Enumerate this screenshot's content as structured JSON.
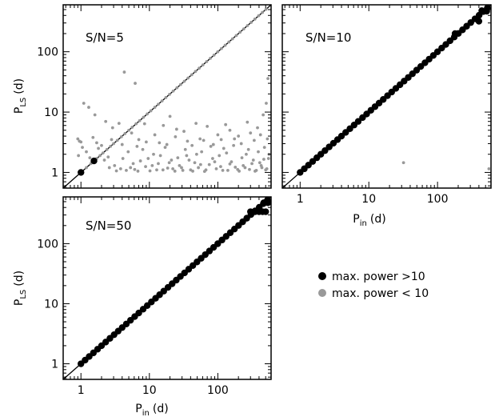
{
  "chart_data": [
    {
      "type": "scatter",
      "panel_label": "S/N=5",
      "xlabel": "",
      "ylabel_main": "P",
      "ylabel_sub": "LS",
      "ylabel_unit": "(d)",
      "scale": "log",
      "xlim": [
        0.55,
        600
      ],
      "ylim": [
        0.55,
        600
      ],
      "x_tick_labels": [],
      "y_tick_labels": [
        "1",
        "10",
        "100"
      ],
      "diagonal": true,
      "black_points": [
        [
          1.0,
          1.0
        ],
        [
          1.55,
          1.55
        ]
      ],
      "gray_points": [
        [
          1.2,
          1.2
        ],
        [
          1.4,
          1.4
        ],
        [
          1.7,
          1.7
        ],
        [
          1.9,
          1.9
        ],
        [
          2.1,
          2.1
        ],
        [
          2.4,
          2.4
        ],
        [
          2.7,
          2.7
        ],
        [
          3.0,
          3.0
        ],
        [
          3.4,
          3.4
        ],
        [
          3.9,
          3.9
        ],
        [
          4.4,
          4.4
        ],
        [
          5.0,
          5.0
        ],
        [
          5.6,
          5.6
        ],
        [
          6.4,
          6.4
        ],
        [
          7.2,
          7.2
        ],
        [
          8.2,
          8.2
        ],
        [
          9.3,
          9.3
        ],
        [
          10.5,
          10.5
        ],
        [
          12,
          12
        ],
        [
          13.5,
          13.5
        ],
        [
          15.3,
          15.3
        ],
        [
          17.4,
          17.4
        ],
        [
          19.7,
          19.7
        ],
        [
          22.3,
          22.3
        ],
        [
          25.3,
          25.3
        ],
        [
          28.6,
          28.6
        ],
        [
          32.4,
          32.4
        ],
        [
          36.7,
          36.7
        ],
        [
          41.6,
          41.6
        ],
        [
          47.1,
          47.1
        ],
        [
          53.4,
          53.4
        ],
        [
          60.5,
          60.5
        ],
        [
          68.6,
          68.6
        ],
        [
          77.7,
          77.7
        ],
        [
          88,
          88
        ],
        [
          99.7,
          99.7
        ],
        [
          113,
          113
        ],
        [
          128,
          128
        ],
        [
          145,
          145
        ],
        [
          164,
          164
        ],
        [
          186,
          186
        ],
        [
          211,
          211
        ],
        [
          239,
          239
        ],
        [
          271,
          271
        ],
        [
          307,
          307
        ],
        [
          348,
          348
        ],
        [
          395,
          395
        ],
        [
          448,
          448
        ],
        [
          505,
          505
        ],
        [
          1.1,
          14
        ],
        [
          1.3,
          12
        ],
        [
          4.3,
          46
        ],
        [
          6.2,
          30
        ],
        [
          1.6,
          9
        ],
        [
          2.3,
          7
        ],
        [
          2.9,
          5.5
        ],
        [
          3.6,
          6.5
        ],
        [
          5.5,
          4.5
        ],
        [
          7,
          3.5
        ],
        [
          9,
          3.2
        ],
        [
          12,
          4.2
        ],
        [
          16,
          6
        ],
        [
          20,
          8.5
        ],
        [
          25,
          5.2
        ],
        [
          32,
          4.8
        ],
        [
          42,
          2.8
        ],
        [
          55,
          3.6
        ],
        [
          70,
          5.8
        ],
        [
          100,
          4.2
        ],
        [
          130,
          6.2
        ],
        [
          175,
          3.6
        ],
        [
          220,
          3.0
        ],
        [
          300,
          4.5
        ],
        [
          380,
          5.5
        ],
        [
          460,
          9
        ],
        [
          510,
          14
        ],
        [
          540,
          36
        ],
        [
          0.9,
          3.6
        ],
        [
          0.95,
          3.3
        ],
        [
          1.05,
          2.6
        ],
        [
          1.2,
          2.2
        ],
        [
          1.5,
          3.8
        ],
        [
          2.0,
          2.8
        ],
        [
          2.5,
          1.8
        ],
        [
          3.1,
          1.3
        ],
        [
          3.8,
          1.15
        ],
        [
          4.6,
          1.08
        ],
        [
          5.3,
          1.2
        ],
        [
          6.1,
          1.12
        ],
        [
          7.4,
          1.55
        ],
        [
          8.8,
          1.25
        ],
        [
          10.2,
          1.06
        ],
        [
          11.5,
          2.0
        ],
        [
          13.5,
          1.4
        ],
        [
          15.8,
          1.1
        ],
        [
          18.5,
          1.18
        ],
        [
          21,
          1.6
        ],
        [
          23.6,
          1.05
        ],
        [
          27.5,
          1.3
        ],
        [
          30.8,
          1.08
        ],
        [
          35,
          1.9
        ],
        [
          40,
          1.1
        ],
        [
          46,
          1.45
        ],
        [
          52,
          1.2
        ],
        [
          58,
          2.2
        ],
        [
          64,
          1.04
        ],
        [
          75,
          1.35
        ],
        [
          84,
          1.7
        ],
        [
          95,
          1.15
        ],
        [
          110,
          1.25
        ],
        [
          122,
          2.5
        ],
        [
          140,
          1.08
        ],
        [
          158,
          1.5
        ],
        [
          180,
          1.22
        ],
        [
          205,
          1.05
        ],
        [
          235,
          1.3
        ],
        [
          260,
          2.0
        ],
        [
          290,
          1.12
        ],
        [
          330,
          1.6
        ],
        [
          365,
          1.08
        ],
        [
          410,
          1.45
        ],
        [
          440,
          1.2
        ],
        [
          480,
          2.6
        ],
        [
          520,
          1.15
        ],
        [
          550,
          1.7
        ],
        [
          0.92,
          1.9
        ],
        [
          1.35,
          1.75
        ],
        [
          1.8,
          2.5
        ],
        [
          2.2,
          1.6
        ],
        [
          2.6,
          1.2
        ],
        [
          3.3,
          1.06
        ],
        [
          4.1,
          1.7
        ],
        [
          4.9,
          2.2
        ],
        [
          5.8,
          1.4
        ],
        [
          6.8,
          1.05
        ],
        [
          8.0,
          2.4
        ],
        [
          9.6,
          1.7
        ],
        [
          11.0,
          1.3
        ],
        [
          12.8,
          1.1
        ],
        [
          14.5,
          1.9
        ],
        [
          17,
          2.6
        ],
        [
          19.5,
          1.45
        ],
        [
          22,
          1.15
        ],
        [
          26,
          1.75
        ],
        [
          29.5,
          1.2
        ],
        [
          33.5,
          2.4
        ],
        [
          38,
          1.6
        ],
        [
          43,
          1.05
        ],
        [
          49,
          2.0
        ],
        [
          56,
          1.35
        ],
        [
          67,
          1.1
        ],
        [
          79,
          2.7
        ],
        [
          90,
          1.5
        ],
        [
          105,
          1.9
        ],
        [
          118,
          1.08
        ],
        [
          134,
          2.1
        ],
        [
          150,
          1.38
        ],
        [
          170,
          2.8
        ],
        [
          195,
          1.12
        ],
        [
          225,
          1.75
        ],
        [
          250,
          1.2
        ],
        [
          280,
          2.4
        ],
        [
          315,
          1.4
        ],
        [
          350,
          1.05
        ],
        [
          390,
          2.2
        ],
        [
          430,
          1.3
        ],
        [
          470,
          1.65
        ],
        [
          500,
          1.1
        ],
        [
          560,
          2.0
        ],
        [
          1.0,
          3.2
        ],
        [
          1.7,
          3.1
        ],
        [
          2.8,
          3.5
        ],
        [
          4.0,
          2.9
        ],
        [
          6.6,
          2.7
        ],
        [
          8.5,
          6.4
        ],
        [
          14,
          3.1
        ],
        [
          18,
          2.9
        ],
        [
          24,
          3.9
        ],
        [
          36,
          3.3
        ],
        [
          48,
          6.5
        ],
        [
          62,
          3.4
        ],
        [
          86,
          2.9
        ],
        [
          112,
          3.5
        ],
        [
          150,
          5.0
        ],
        [
          200,
          4.0
        ],
        [
          270,
          6.8
        ],
        [
          340,
          3.4
        ],
        [
          420,
          4.2
        ],
        [
          530,
          3.6
        ]
      ]
    },
    {
      "type": "scatter",
      "panel_label": "S/N=10",
      "xlabel_main": "P",
      "xlabel_sub": "in",
      "xlabel_unit": "(d)",
      "scale": "log",
      "xlim": [
        0.55,
        600
      ],
      "ylim": [
        0.55,
        600
      ],
      "x_tick_labels": [
        "1",
        "10",
        "100"
      ],
      "y_tick_labels": [],
      "diagonal": true,
      "black_points": [
        [
          1.0,
          1.0
        ],
        [
          1.15,
          1.15
        ],
        [
          1.32,
          1.32
        ],
        [
          1.52,
          1.52
        ],
        [
          1.75,
          1.75
        ],
        [
          2.0,
          2.0
        ],
        [
          2.3,
          2.3
        ],
        [
          2.65,
          2.65
        ],
        [
          3.05,
          3.05
        ],
        [
          3.5,
          3.5
        ],
        [
          4.0,
          4.0
        ],
        [
          4.6,
          4.6
        ],
        [
          5.3,
          5.3
        ],
        [
          6.1,
          6.1
        ],
        [
          7.0,
          7.0
        ],
        [
          8.1,
          8.1
        ],
        [
          9.3,
          9.3
        ],
        [
          10.7,
          10.7
        ],
        [
          12.3,
          12.3
        ],
        [
          14.1,
          14.1
        ],
        [
          16.2,
          16.2
        ],
        [
          18.7,
          18.7
        ],
        [
          21.5,
          21.5
        ],
        [
          24.7,
          24.7
        ],
        [
          28.4,
          28.4
        ],
        [
          32.6,
          32.6
        ],
        [
          37.5,
          37.5
        ],
        [
          43.1,
          43.1
        ],
        [
          49.6,
          49.6
        ],
        [
          57.0,
          57.0
        ],
        [
          65.6,
          65.6
        ],
        [
          75.4,
          75.4
        ],
        [
          86.7,
          86.7
        ],
        [
          99.7,
          99.7
        ],
        [
          115,
          115
        ],
        [
          132,
          132
        ],
        [
          152,
          152
        ],
        [
          175,
          175
        ],
        [
          201,
          201
        ],
        [
          231,
          231
        ],
        [
          265,
          265
        ],
        [
          305,
          305
        ],
        [
          351,
          351
        ],
        [
          403,
          403
        ],
        [
          463,
          463
        ],
        [
          530,
          530
        ],
        [
          180,
          200
        ],
        [
          400,
          320
        ],
        [
          440,
          480
        ],
        [
          520,
          470
        ]
      ],
      "gray_points": [
        [
          32,
          1.45
        ],
        [
          560,
          1.15
        ],
        [
          230,
          220
        ],
        [
          260,
          250
        ],
        [
          300,
          290
        ],
        [
          350,
          340
        ],
        [
          470,
          440
        ],
        [
          530,
          500
        ]
      ]
    },
    {
      "type": "scatter",
      "panel_label": "S/N=50",
      "xlabel_main": "P",
      "xlabel_sub": "in",
      "xlabel_unit": "(d)",
      "ylabel_main": "P",
      "ylabel_sub": "LS",
      "ylabel_unit": "(d)",
      "scale": "log",
      "xlim": [
        0.55,
        600
      ],
      "ylim": [
        0.55,
        600
      ],
      "x_tick_labels": [
        "1",
        "10",
        "100"
      ],
      "y_tick_labels": [
        "1",
        "10",
        "100"
      ],
      "diagonal": true,
      "black_points": [
        [
          1.0,
          1.0
        ],
        [
          1.15,
          1.15
        ],
        [
          1.32,
          1.32
        ],
        [
          1.52,
          1.52
        ],
        [
          1.75,
          1.75
        ],
        [
          2.0,
          2.0
        ],
        [
          2.3,
          2.3
        ],
        [
          2.65,
          2.65
        ],
        [
          3.05,
          3.05
        ],
        [
          3.5,
          3.5
        ],
        [
          4.0,
          4.0
        ],
        [
          4.6,
          4.6
        ],
        [
          5.3,
          5.3
        ],
        [
          6.1,
          6.1
        ],
        [
          7.0,
          7.0
        ],
        [
          8.1,
          8.1
        ],
        [
          9.3,
          9.3
        ],
        [
          10.7,
          10.7
        ],
        [
          12.3,
          12.3
        ],
        [
          14.1,
          14.1
        ],
        [
          16.2,
          16.2
        ],
        [
          18.7,
          18.7
        ],
        [
          21.5,
          21.5
        ],
        [
          24.7,
          24.7
        ],
        [
          28.4,
          28.4
        ],
        [
          32.6,
          32.6
        ],
        [
          37.5,
          37.5
        ],
        [
          43.1,
          43.1
        ],
        [
          49.6,
          49.6
        ],
        [
          57.0,
          57.0
        ],
        [
          65.6,
          65.6
        ],
        [
          75.4,
          75.4
        ],
        [
          86.7,
          86.7
        ],
        [
          99.7,
          99.7
        ],
        [
          115,
          115
        ],
        [
          132,
          132
        ],
        [
          152,
          152
        ],
        [
          175,
          175
        ],
        [
          201,
          201
        ],
        [
          231,
          231
        ],
        [
          265,
          265
        ],
        [
          305,
          305
        ],
        [
          351,
          351
        ],
        [
          403,
          403
        ],
        [
          463,
          463
        ],
        [
          530,
          530
        ],
        [
          300,
          340
        ],
        [
          350,
          340
        ],
        [
          400,
          340
        ],
        [
          450,
          340
        ],
        [
          500,
          340
        ],
        [
          470,
          480
        ],
        [
          540,
          480
        ]
      ],
      "gray_points": []
    }
  ],
  "legend": {
    "items": [
      {
        "label": "max. power >10",
        "color": "#000000"
      },
      {
        "label": "max. power < 10",
        "color": "#999999"
      }
    ]
  },
  "colors": {
    "black_point": "#000000",
    "gray_point": "#999999",
    "axis": "#000000"
  }
}
